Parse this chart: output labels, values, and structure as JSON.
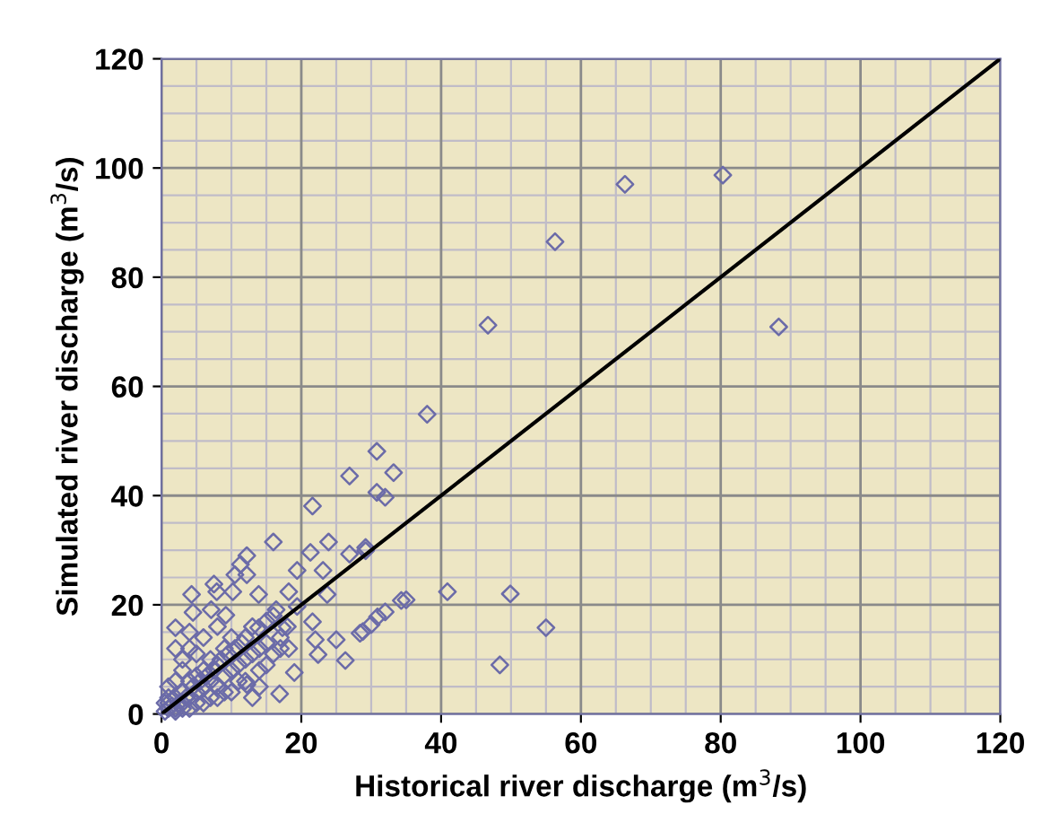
{
  "chart_data": {
    "type": "scatter",
    "xlabel": "Historical river discharge (m$^{3}$/s)",
    "ylabel": "Simulated river discharge (m$^{3}$/s)",
    "xlim": [
      0,
      120
    ],
    "ylim": [
      0,
      120
    ],
    "xticks": [
      0,
      20,
      40,
      60,
      80,
      100,
      120
    ],
    "yticks": [
      0,
      20,
      40,
      60,
      80,
      100,
      120
    ],
    "grid": true,
    "legend": false,
    "series": [
      {
        "marker": "diamond",
        "color": "#6b6ba8",
        "x": [
          66.3,
          80.3,
          56.3,
          46.7,
          88.3,
          38.0,
          30.8,
          33.2,
          30.8,
          32.0,
          29.2,
          40.9,
          49.9,
          55.0,
          48.4,
          35.0,
          32.0,
          30.9,
          30.0,
          28.8,
          26.9,
          21.6,
          16.0,
          23.9,
          21.3,
          26.9,
          29.2,
          23.1,
          19.4,
          12.2,
          11.3,
          12.2,
          10.5,
          7.5,
          7.9,
          10.2,
          4.3,
          13.9,
          16.4,
          18.2,
          19.4,
          21.6,
          23.7,
          17.3,
          2.0,
          4.5,
          7.1,
          9.2,
          13.9,
          25.0,
          22.0,
          22.4,
          26.3,
          18.2,
          19.0,
          16.9,
          12.2,
          28.4,
          34.3,
          1,
          1,
          2,
          2,
          3,
          3,
          4,
          4,
          5,
          5,
          6,
          6,
          7,
          7,
          8,
          8,
          9,
          9,
          10,
          10,
          11,
          12,
          12,
          13,
          14,
          14,
          15,
          16,
          17,
          18,
          3,
          5,
          2,
          4,
          6,
          8,
          0.5,
          1,
          2,
          3,
          4,
          6,
          8,
          10,
          12,
          14,
          5,
          7,
          9,
          11,
          3,
          1,
          2,
          4,
          0.5,
          1.5,
          2.5,
          3.5,
          4.5,
          5.5,
          6.5,
          7.5,
          8.5,
          9.5,
          10.5,
          11.5,
          13,
          15,
          16,
          13,
          15,
          17
        ],
        "values": [
          97.0,
          98.7,
          86.5,
          71.2,
          70.9,
          54.9,
          48.1,
          44.2,
          40.6,
          39.7,
          30.5,
          22.4,
          22.0,
          15.8,
          9.0,
          20.9,
          18.7,
          17.8,
          16.4,
          15.1,
          43.6,
          38.1,
          31.5,
          31.5,
          29.6,
          29.3,
          29.9,
          26.3,
          26.3,
          29.0,
          27.4,
          25.5,
          25.5,
          23.8,
          22.4,
          22.4,
          21.9,
          21.9,
          19.1,
          22.4,
          19.7,
          16.9,
          21.9,
          15.8,
          15.8,
          18.6,
          19.1,
          18.1,
          15.8,
          13.6,
          13.6,
          10.9,
          9.8,
          12.0,
          7.6,
          3.7,
          5.4,
          14.8,
          20.8,
          1,
          2,
          1,
          3,
          2,
          4,
          3,
          6,
          4,
          7,
          5,
          8,
          6,
          10,
          5,
          9,
          7,
          12,
          8,
          14,
          9,
          10,
          14,
          11,
          12,
          8,
          13,
          11,
          14,
          16,
          8,
          11,
          6,
          12,
          14,
          16,
          0.5,
          3,
          0.5,
          1,
          1,
          2,
          3,
          4,
          6,
          5,
          2,
          3,
          4,
          6,
          10,
          5,
          12,
          15,
          2,
          1.5,
          2,
          3,
          5,
          6,
          7,
          8,
          10,
          11,
          12,
          13,
          16,
          17,
          18,
          3,
          9,
          12
        ]
      },
      {
        "type": "line",
        "marker": "none",
        "color": "#000000",
        "x": [
          0,
          120
        ],
        "values": [
          0,
          120
        ]
      }
    ]
  }
}
